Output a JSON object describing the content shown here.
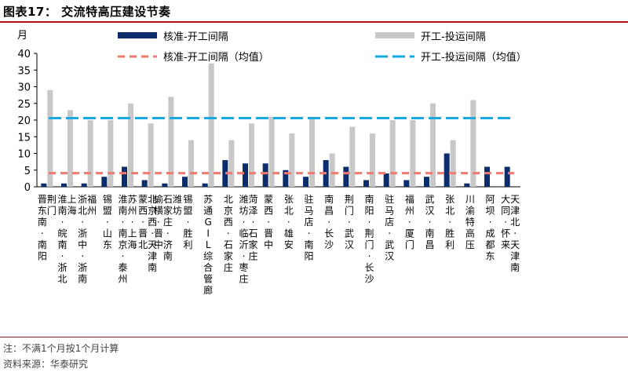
{
  "header": {
    "title": "图表17：  交流特高压建设节奏"
  },
  "footer": {
    "note": "注：不满1个月按1个月计算",
    "source": "资料来源：华泰研究"
  },
  "colors": {
    "approval_bar": "#0c2d6b",
    "build_bar": "#c8c8c8",
    "approval_avg": "#f07a6e",
    "build_avg": "#18a9e0"
  },
  "chart_data": {
    "type": "bar",
    "ylabel": "月",
    "ylim": [
      0,
      40
    ],
    "yticks": [
      0,
      5,
      10,
      15,
      20,
      25,
      30,
      35,
      40
    ],
    "grid": false,
    "legend_position": "top",
    "categories": [
      "晋东南-南阳-荆门",
      "淮南-皖南-浙北-上海",
      "浙北-浙中-浙南-福州",
      "锡盟-山东",
      "淮南-南京-泰州-苏州-上海",
      "蒙西-晋北-北京西-天津南",
      "榆横-晋中-石家庄-济南-潍坊",
      "锡盟-胜利",
      "苏通GIL综合管廊",
      "北京西-石家庄",
      "潍坊-临沂-枣庄-菏泽-石家庄",
      "蒙西-晋中",
      "张北-雄安",
      "驻马店-南阳",
      "南昌-长沙",
      "荆门-武汉",
      "南阳-荆门-长沙",
      "驻马店-武汉",
      "福州-厦门",
      "武汉-南昌",
      "张北-胜利",
      "川渝特高压",
      "阿坝-成都东",
      "大同-怀来-天津北-天津南"
    ],
    "series": [
      {
        "name": "核准-开工间隔",
        "kind": "bar",
        "values": [
          1,
          1,
          1,
          3,
          6,
          2,
          1,
          3,
          1,
          8,
          7,
          7,
          5,
          3,
          8,
          6,
          2,
          4,
          2,
          3,
          10,
          1,
          6,
          6
        ]
      },
      {
        "name": "开工-投运间隔",
        "kind": "bar",
        "values": [
          29,
          23,
          20,
          20,
          25,
          19,
          27,
          14,
          37,
          14,
          19,
          21,
          16,
          21,
          10,
          18,
          16,
          20,
          20,
          25,
          14,
          26,
          null,
          null
        ]
      },
      {
        "name": "核准-开工间隔（均值）",
        "kind": "line",
        "value": 4.1
      },
      {
        "name": "开工-投运间隔（均值）",
        "kind": "line",
        "value": 20.6
      }
    ]
  }
}
